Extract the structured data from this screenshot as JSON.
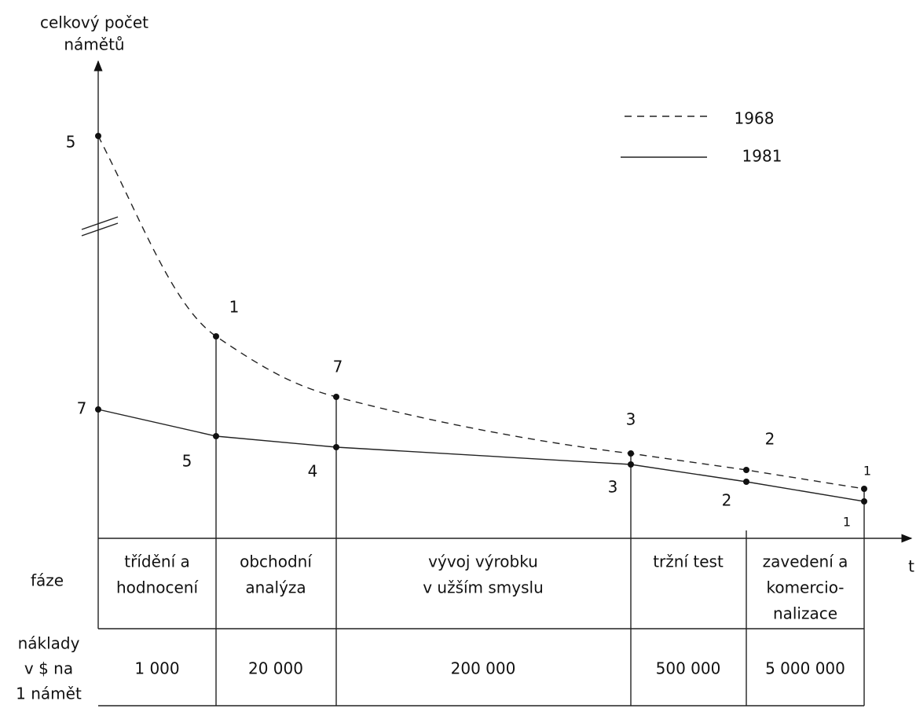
{
  "y_axis_label": [
    "celkový počet",
    "námětů"
  ],
  "x_axis_label": "t",
  "legend": [
    {
      "label": "1968",
      "style": "dashed"
    },
    {
      "label": "1981",
      "style": "solid"
    }
  ],
  "series": [
    {
      "name": "1968",
      "point_labels": [
        "5",
        "1",
        "7",
        "3",
        "2",
        "1"
      ]
    },
    {
      "name": "1981",
      "point_labels": [
        "7",
        "5",
        "4",
        "3",
        "2",
        "1"
      ]
    }
  ],
  "table": {
    "row_headers": {
      "phase": [
        "fáze"
      ],
      "cost": [
        "náklady",
        "v $ na",
        "1 námět"
      ]
    },
    "phases": [
      [
        "třídění a",
        "hodnocení"
      ],
      [
        "obchodní",
        "analýza"
      ],
      [
        "vývoj výrobku",
        "v užším smyslu"
      ],
      [
        "tržní test"
      ],
      [
        "zavedení a",
        "komercio-",
        "nalizace"
      ]
    ],
    "costs": [
      "1 000",
      "20 000",
      "200 000",
      "500 000",
      "5 000 000"
    ]
  }
}
